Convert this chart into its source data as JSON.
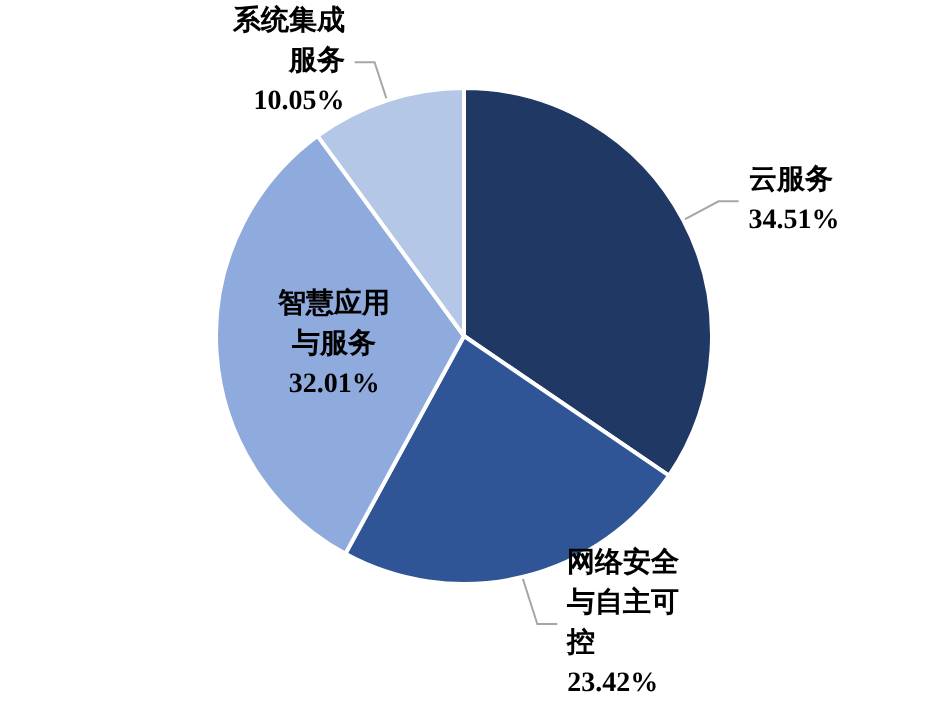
{
  "chart_data": {
    "type": "pie",
    "categories": [
      "云服务",
      "网络安全与自主可控",
      "智慧应用与服务",
      "系统集成服务"
    ],
    "values": [
      34.51,
      23.42,
      32.01,
      10.05
    ],
    "colors": [
      "#1f3864",
      "#2f5597",
      "#8faadc",
      "#b4c7e7"
    ],
    "value_labels": [
      "34.51%",
      "23.42%",
      "32.01%",
      "10.05%"
    ],
    "legend": false
  }
}
